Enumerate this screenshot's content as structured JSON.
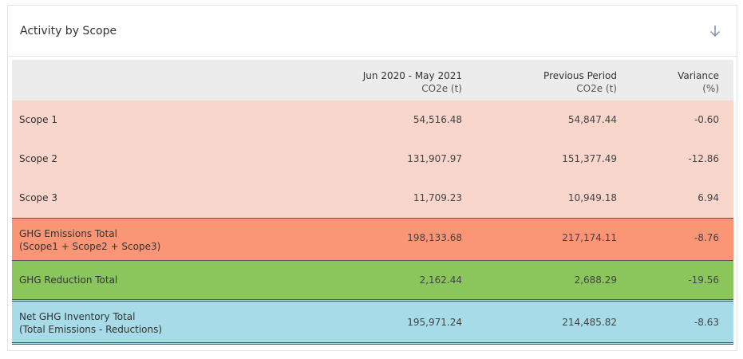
{
  "card": {
    "title": "Activity by Scope",
    "download_icon": "arrow-down-icon"
  },
  "table": {
    "headers": [
      {
        "line1": "",
        "line2": ""
      },
      {
        "line1": "Jun 2020 - May 2021",
        "line2": "CO2e (t)"
      },
      {
        "line1": "Previous Period",
        "line2": "CO2e (t)"
      },
      {
        "line1": "Variance",
        "line2": "(%)"
      }
    ],
    "rows": [
      {
        "label": "Scope 1",
        "sublabel": "",
        "current": "54,516.48",
        "previous": "54,847.44",
        "variance": "-0.60"
      },
      {
        "label": "Scope 2",
        "sublabel": "",
        "current": "131,907.97",
        "previous": "151,377.49",
        "variance": "-12.86"
      },
      {
        "label": "Scope 3",
        "sublabel": "",
        "current": "11,709.23",
        "previous": "10,949.18",
        "variance": "6.94"
      },
      {
        "label": "GHG Emissions Total",
        "sublabel": "(Scope1 + Scope2 + Scope3)",
        "current": "198,133.68",
        "previous": "217,174.11",
        "variance": "-8.76"
      },
      {
        "label": "GHG Reduction Total",
        "sublabel": "",
        "current": "2,162.44",
        "previous": "2,688.29",
        "variance": "-19.56"
      },
      {
        "label": "Net GHG Inventory Total",
        "sublabel": "(Total Emissions - Reductions)",
        "current": "195,971.24",
        "previous": "214,485.82",
        "variance": "-8.63"
      }
    ]
  },
  "colors": {
    "scope_row": "#f9d6cc",
    "ghg_total_row": "#fa9675",
    "reduction_row": "#8ac65c",
    "net_row": "#a8dbe8",
    "header_row": "#ececec"
  }
}
